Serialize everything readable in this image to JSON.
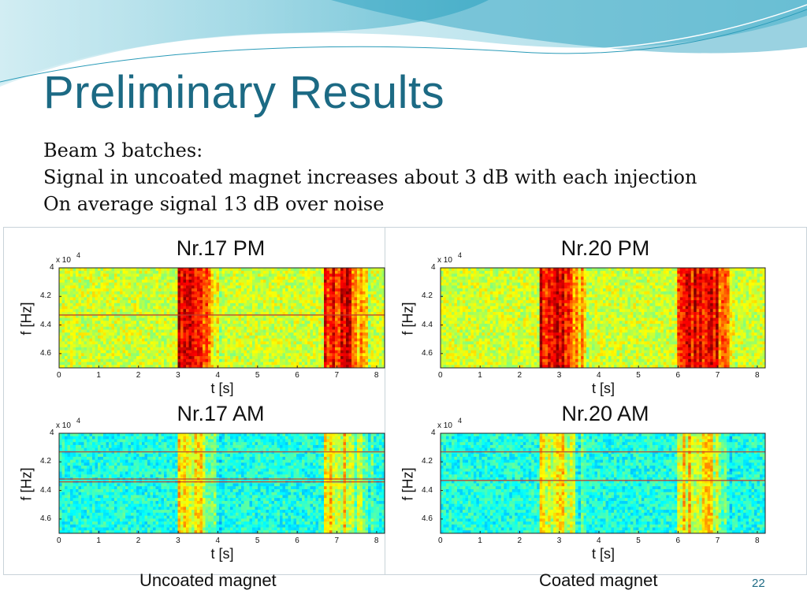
{
  "slide": {
    "title": "Preliminary Results",
    "lines": [
      "Beam 3 batches:",
      "Signal in uncoated magnet increases about 3 dB with each injection",
      "On average signal 13 dB over noise"
    ],
    "page_number": "22",
    "captions": {
      "left": "Uncoated magnet",
      "right": "Coated magnet"
    },
    "accent_color": "#1c6a84"
  },
  "chart_data": [
    {
      "type": "heatmap",
      "title": "Nr.17 PM",
      "xlabel": "t [s]",
      "ylabel": "f [Hz]",
      "y_multiplier": "x 10",
      "y_multiplier_exp": "4",
      "x_ticks": [
        "0",
        "1",
        "2",
        "3",
        "4",
        "5",
        "6",
        "7",
        "8"
      ],
      "y_ticks": [
        "4",
        "4.2",
        "4.4",
        "4.6"
      ],
      "xlim": [
        0,
        8.2
      ],
      "ylim": [
        4.0,
        4.7
      ],
      "background_level": "yellow-green (noise)",
      "signal_bands_s": [
        [
          3.0,
          3.6
        ],
        [
          6.7,
          7.4
        ]
      ],
      "line_freq_hz_e4": [
        4.33
      ]
    },
    {
      "type": "heatmap",
      "title": "Nr.20 PM",
      "xlabel": "t [s]",
      "ylabel": "f [Hz]",
      "y_multiplier": "x 10",
      "y_multiplier_exp": "4",
      "x_ticks": [
        "0",
        "1",
        "2",
        "3",
        "4",
        "5",
        "6",
        "7",
        "8"
      ],
      "y_ticks": [
        "4",
        "4.2",
        "4.4",
        "4.6"
      ],
      "xlim": [
        0,
        8.2
      ],
      "ylim": [
        4.0,
        4.7
      ],
      "background_level": "yellow-green (noise)",
      "signal_bands_s": [
        [
          2.5,
          3.3
        ],
        [
          6.0,
          7.0
        ]
      ],
      "line_freq_hz_e4": []
    },
    {
      "type": "heatmap",
      "title": "Nr.17 AM",
      "xlabel": "t [s]",
      "ylabel": "f [Hz]",
      "y_multiplier": "x 10",
      "y_multiplier_exp": "4",
      "x_ticks": [
        "0",
        "1",
        "2",
        "3",
        "4",
        "5",
        "6",
        "7",
        "8"
      ],
      "y_ticks": [
        "4",
        "4.2",
        "4.4",
        "4.6"
      ],
      "xlim": [
        0,
        8.2
      ],
      "ylim": [
        4.0,
        4.7
      ],
      "background_level": "cyan (noise)",
      "signal_bands_s": [
        [
          3.0,
          3.6
        ],
        [
          6.7,
          7.4
        ]
      ],
      "line_freq_hz_e4": [
        4.13,
        4.32,
        4.34
      ]
    },
    {
      "type": "heatmap",
      "title": "Nr.20 AM",
      "xlabel": "t [s]",
      "ylabel": "f [Hz]",
      "y_multiplier": "x 10",
      "y_multiplier_exp": "4",
      "x_ticks": [
        "0",
        "1",
        "2",
        "3",
        "4",
        "5",
        "6",
        "7",
        "8"
      ],
      "y_ticks": [
        "4",
        "4.2",
        "4.4",
        "4.6"
      ],
      "xlim": [
        0,
        8.2
      ],
      "ylim": [
        4.0,
        4.7
      ],
      "background_level": "cyan (noise)",
      "signal_bands_s": [
        [
          2.5,
          3.2
        ],
        [
          6.0,
          6.9
        ]
      ],
      "line_freq_hz_e4": [
        4.13,
        4.33
      ]
    }
  ]
}
